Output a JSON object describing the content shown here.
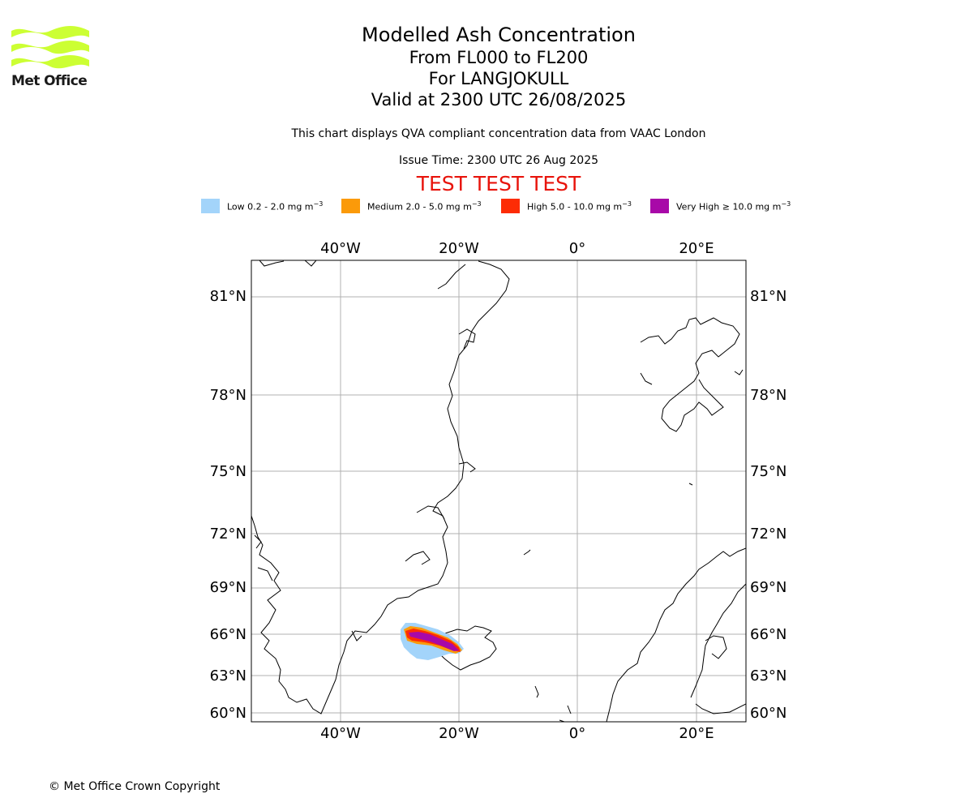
{
  "logo": {
    "text": "Met Office",
    "wave_color": "#ccff33"
  },
  "header": {
    "title": "Modelled Ash Concentration",
    "level_range": "From FL000 to FL200",
    "volcano": "For LANGJOKULL",
    "valid_time": "Valid at 2300 UTC 26/08/2025",
    "description": "This chart displays QVA compliant concentration data from VAAC London",
    "issue_time": "Issue Time: 2300 UTC 26 Aug 2025",
    "test_banner": "TEST TEST TEST",
    "test_color": "#e8140c"
  },
  "legend": [
    {
      "label": "Low 0.2 - 2.0 mg m",
      "color": "#a3d4fa"
    },
    {
      "label": "Medium 2.0 - 5.0 mg m",
      "color": "#fb9a09"
    },
    {
      "label": "High 5.0 - 10.0 mg m",
      "color": "#fd2c05"
    },
    {
      "label": "Very High ≥ 10.0 mg m",
      "color": "#a809a8"
    }
  ],
  "legend_exponent": "−3",
  "map": {
    "projection": "polar stereographic",
    "lon_labels": [
      "40°W",
      "20°W",
      "0°",
      "20°E"
    ],
    "lat_labels": [
      "81°N",
      "78°N",
      "75°N",
      "72°N",
      "69°N",
      "66°N",
      "63°N",
      "60°N"
    ],
    "gridlines": true,
    "gridline_color": "#b0b0b0",
    "coastline_color": "#000000"
  },
  "footer": {
    "copyright": "© Met Office Crown Copyright"
  }
}
